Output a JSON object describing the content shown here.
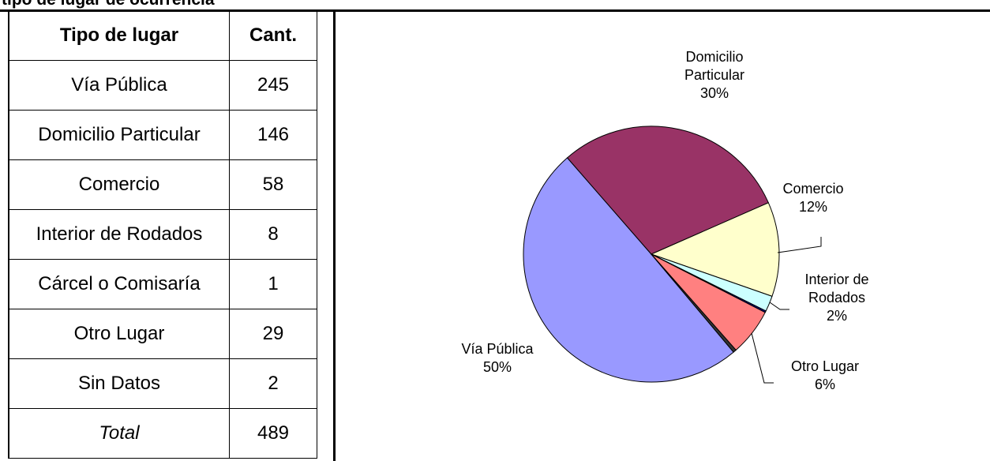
{
  "title": "tipo de lugar de ocurrencia",
  "table": {
    "header": [
      "Tipo de lugar",
      "Cant."
    ],
    "rows": [
      [
        "Vía Pública",
        245
      ],
      [
        "Domicilio Particular",
        146
      ],
      [
        "Comercio",
        58
      ],
      [
        "Interior de Rodados",
        8
      ],
      [
        "Cárcel o Comisaría",
        1
      ],
      [
        "Otro Lugar",
        29
      ],
      [
        "Sin Datos",
        2
      ],
      [
        "Total",
        489
      ]
    ]
  },
  "chart_data": {
    "type": "pie",
    "categories": [
      "Vía Pública",
      "Domicilio\nParticular",
      "Comercio",
      "Interior de\nRodados",
      null,
      "Otro Lugar",
      null
    ],
    "values": [
      50,
      30,
      12,
      2,
      0.2,
      6,
      0.4
    ],
    "value_labels": [
      "50%",
      "30%",
      "12%",
      "2%",
      null,
      "6%",
      null
    ],
    "colors": [
      "#9999ff",
      "#993366",
      "#ffffcc",
      "#ccffff",
      "#000080",
      "#ff8080",
      "#333333"
    ]
  }
}
